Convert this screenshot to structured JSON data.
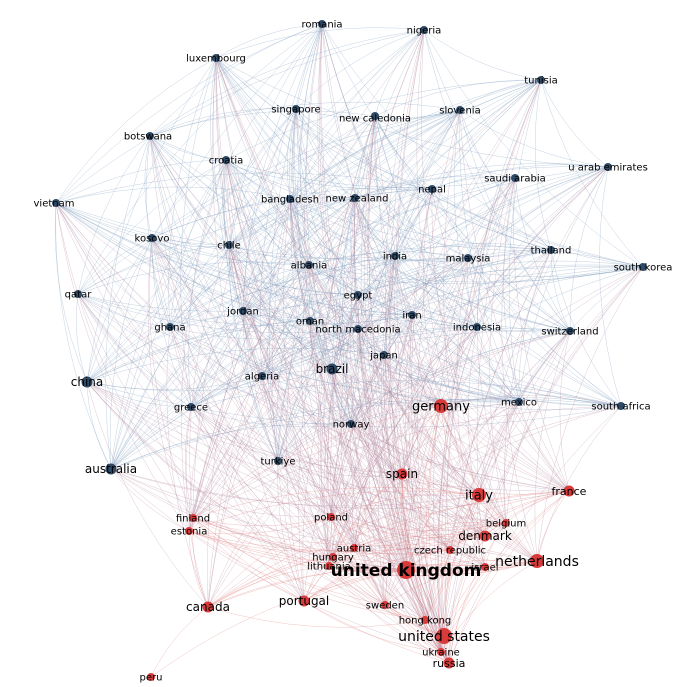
{
  "colors": {
    "blue_node": "#2e4a66",
    "blue_edge": "#7d9bbd",
    "red_node": "#d93b3b",
    "red_edge": "#e07a7a",
    "mixed_edge": "#b48aa0"
  },
  "graph": {
    "nodes": [
      {
        "id": "romania",
        "label": "romania",
        "group": "blue",
        "weight": 1
      },
      {
        "id": "nigeria",
        "label": "nigeria",
        "group": "blue",
        "weight": 1
      },
      {
        "id": "luxembourg",
        "label": "luxembourg",
        "group": "blue",
        "weight": 1
      },
      {
        "id": "tunisia",
        "label": "tunisia",
        "group": "blue",
        "weight": 1
      },
      {
        "id": "singapore",
        "label": "singapore",
        "group": "blue",
        "weight": 1
      },
      {
        "id": "new-caledonia",
        "label": "new caledonia",
        "group": "blue",
        "weight": 1
      },
      {
        "id": "slovenia",
        "label": "slovenia",
        "group": "blue",
        "weight": 1
      },
      {
        "id": "botswana",
        "label": "botswana",
        "group": "blue",
        "weight": 1
      },
      {
        "id": "croatia",
        "label": "croatia",
        "group": "blue",
        "weight": 1
      },
      {
        "id": "u-arab-emirates",
        "label": "u arab emirates",
        "group": "blue",
        "weight": 1
      },
      {
        "id": "saudi-arabia",
        "label": "saudi arabia",
        "group": "blue",
        "weight": 1
      },
      {
        "id": "nepal",
        "label": "nepal",
        "group": "blue",
        "weight": 1
      },
      {
        "id": "bangladesh",
        "label": "bangladesh",
        "group": "blue",
        "weight": 1
      },
      {
        "id": "new-zealand",
        "label": "new zealand",
        "group": "blue",
        "weight": 1
      },
      {
        "id": "vietnam",
        "label": "vietnam",
        "group": "blue",
        "weight": 1
      },
      {
        "id": "kosovo",
        "label": "kosovo",
        "group": "blue",
        "weight": 1
      },
      {
        "id": "chile",
        "label": "chile",
        "group": "blue",
        "weight": 1
      },
      {
        "id": "thailand",
        "label": "thailand",
        "group": "blue",
        "weight": 1
      },
      {
        "id": "india",
        "label": "india",
        "group": "blue",
        "weight": 1
      },
      {
        "id": "malaysia",
        "label": "malaysia",
        "group": "blue",
        "weight": 1
      },
      {
        "id": "south-korea",
        "label": "south korea",
        "group": "blue",
        "weight": 1
      },
      {
        "id": "albania",
        "label": "albania",
        "group": "blue",
        "weight": 1
      },
      {
        "id": "qatar",
        "label": "qatar",
        "group": "blue",
        "weight": 1
      },
      {
        "id": "egypt",
        "label": "egypt",
        "group": "blue",
        "weight": 1
      },
      {
        "id": "jordan",
        "label": "jordan",
        "group": "blue",
        "weight": 1
      },
      {
        "id": "iran",
        "label": "iran",
        "group": "blue",
        "weight": 1
      },
      {
        "id": "oman",
        "label": "oman",
        "group": "blue",
        "weight": 1
      },
      {
        "id": "ghana",
        "label": "ghana",
        "group": "blue",
        "weight": 1
      },
      {
        "id": "north-macedonia",
        "label": "north macedonia",
        "group": "blue",
        "weight": 1
      },
      {
        "id": "indonesia",
        "label": "indonesia",
        "group": "blue",
        "weight": 1
      },
      {
        "id": "switzerland",
        "label": "switzerland",
        "group": "blue",
        "weight": 1
      },
      {
        "id": "japan",
        "label": "japan",
        "group": "blue",
        "weight": 1
      },
      {
        "id": "china",
        "label": "china",
        "group": "blue",
        "weight": 2
      },
      {
        "id": "algeria",
        "label": "algeria",
        "group": "blue",
        "weight": 1
      },
      {
        "id": "brazil",
        "label": "brazil",
        "group": "blue",
        "weight": 2
      },
      {
        "id": "mexico",
        "label": "mexico",
        "group": "blue",
        "weight": 1
      },
      {
        "id": "south-africa",
        "label": "south africa",
        "group": "blue",
        "weight": 1
      },
      {
        "id": "greece",
        "label": "greece",
        "group": "blue",
        "weight": 1
      },
      {
        "id": "germany",
        "label": "germany",
        "group": "red",
        "weight": 3
      },
      {
        "id": "norway",
        "label": "norway",
        "group": "blue",
        "weight": 1
      },
      {
        "id": "australia",
        "label": "australia",
        "group": "blue",
        "weight": 2
      },
      {
        "id": "turkiye",
        "label": "turkiye",
        "group": "blue",
        "weight": 1
      },
      {
        "id": "spain",
        "label": "spain",
        "group": "red",
        "weight": 2
      },
      {
        "id": "italy",
        "label": "italy",
        "group": "red",
        "weight": 3
      },
      {
        "id": "france",
        "label": "france",
        "group": "red",
        "weight": 2
      },
      {
        "id": "finland",
        "label": "finland",
        "group": "red",
        "weight": 1
      },
      {
        "id": "estonia",
        "label": "estonia",
        "group": "red",
        "weight": 1
      },
      {
        "id": "poland",
        "label": "poland",
        "group": "red",
        "weight": 1
      },
      {
        "id": "belgium",
        "label": "belgium",
        "group": "red",
        "weight": 1
      },
      {
        "id": "denmark",
        "label": "denmark",
        "group": "red",
        "weight": 2
      },
      {
        "id": "austria",
        "label": "austria",
        "group": "red",
        "weight": 1
      },
      {
        "id": "czech-republic",
        "label": "czech republic",
        "group": "red",
        "weight": 1
      },
      {
        "id": "hungary",
        "label": "hungary",
        "group": "red",
        "weight": 1
      },
      {
        "id": "lithuania",
        "label": "lithuania",
        "group": "red",
        "weight": 1
      },
      {
        "id": "united-kingdom",
        "label": "united kingdom",
        "group": "red",
        "weight": 5
      },
      {
        "id": "israel",
        "label": "israel",
        "group": "red",
        "weight": 1
      },
      {
        "id": "netherlands",
        "label": "netherlands",
        "group": "red",
        "weight": 3
      },
      {
        "id": "canada",
        "label": "canada",
        "group": "red",
        "weight": 2
      },
      {
        "id": "portugal",
        "label": "portugal",
        "group": "red",
        "weight": 2
      },
      {
        "id": "sweden",
        "label": "sweden",
        "group": "red",
        "weight": 1
      },
      {
        "id": "hong-kong",
        "label": "hong kong",
        "group": "red",
        "weight": 1
      },
      {
        "id": "united-states",
        "label": "united states",
        "group": "red",
        "weight": 4
      },
      {
        "id": "ukraine",
        "label": "ukraine",
        "group": "red",
        "weight": 1
      },
      {
        "id": "russia",
        "label": "russia",
        "group": "red",
        "weight": 2
      },
      {
        "id": "peru",
        "label": "peru",
        "group": "red",
        "weight": 1
      }
    ]
  }
}
